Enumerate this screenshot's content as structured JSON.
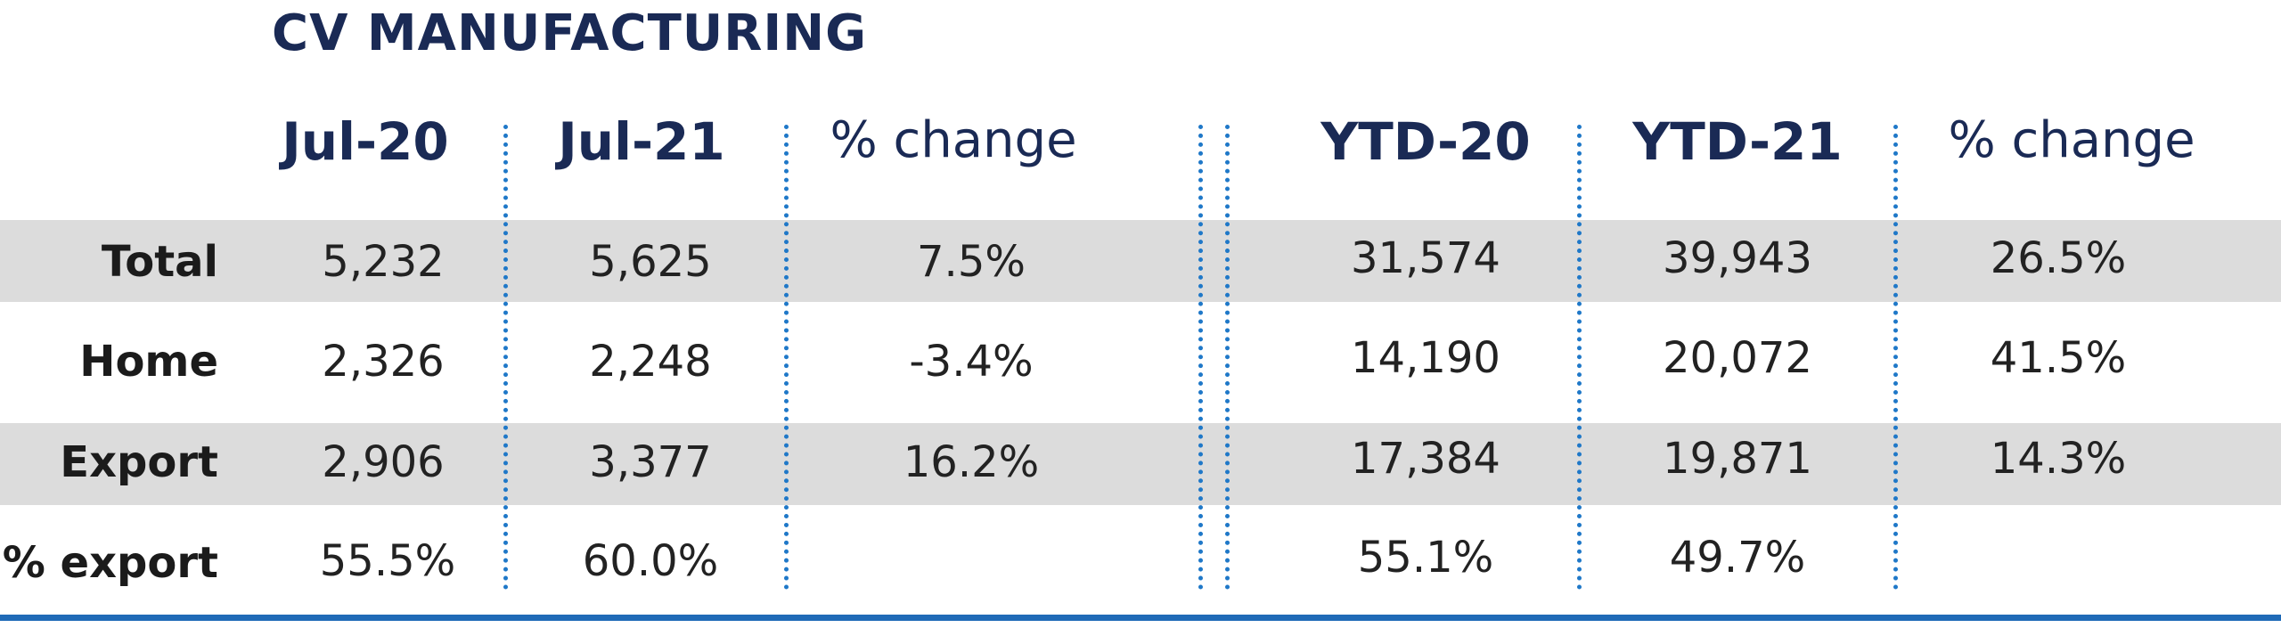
{
  "title": "CV MANUFACTURING",
  "headers": [
    "Jul-20",
    "Jul-21",
    "% change",
    "YTD-20",
    "YTD-21",
    "% change"
  ],
  "rows": [
    {
      "label": "Total",
      "values": [
        "5,232",
        "5,625",
        "7.5%",
        "31,574",
        "39,943",
        "26.5%"
      ]
    },
    {
      "label": "Home",
      "values": [
        "2,326",
        "2,248",
        "-3.4%",
        "14,190",
        "20,072",
        "41.5%"
      ]
    },
    {
      "label": "Export",
      "values": [
        "2,906",
        "3,377",
        "16.2%",
        "17,384",
        "19,871",
        "14.3%"
      ]
    },
    {
      "label": "% export",
      "values": [
        "55.5%",
        "60.0%",
        "",
        "55.1%",
        "49.7%",
        ""
      ]
    }
  ],
  "colors": {
    "title": "#1a2a55",
    "row_shade": "#dcdcdc",
    "divider": "#1f78c8",
    "bottom_rule": "#1f6ab7"
  }
}
